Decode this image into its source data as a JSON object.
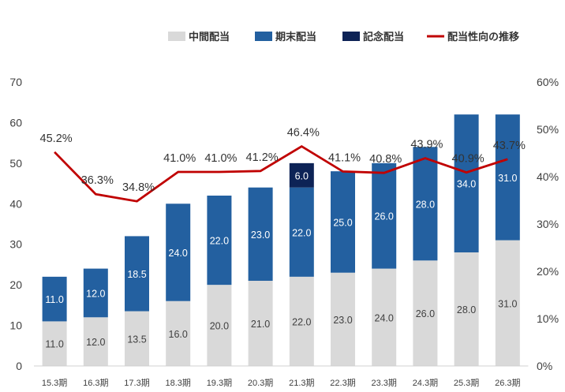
{
  "chart_data": {
    "type": "bar",
    "stacked": true,
    "categories": [
      "15.3期",
      "16.3期",
      "17.3期",
      "18.3期",
      "19.3期",
      "20.3期",
      "21.3期",
      "22.3期",
      "23.3期",
      "24.3期",
      "25.3期",
      "26.3期"
    ],
    "series": [
      {
        "name": "中間配当",
        "color": "#d9d9d9",
        "label_color": "#404040",
        "values": [
          11.0,
          12.0,
          13.5,
          16.0,
          20.0,
          21.0,
          22.0,
          23.0,
          24.0,
          26.0,
          28.0,
          31.0
        ],
        "labels": [
          "11.0",
          "12.0",
          "13.5",
          "16.0",
          "20.0",
          "21.0",
          "22.0",
          "23.0",
          "24.0",
          "26.0",
          "28.0",
          "31.0"
        ]
      },
      {
        "name": "期末配当",
        "color": "#2360a0",
        "label_color": "#ffffff",
        "values": [
          11.0,
          12.0,
          18.5,
          24.0,
          22.0,
          23.0,
          22.0,
          25.0,
          26.0,
          28.0,
          34.0,
          31.0
        ],
        "labels": [
          "11.0",
          "12.0",
          "18.5",
          "24.0",
          "22.0",
          "23.0",
          "22.0",
          "25.0",
          "26.0",
          "28.0",
          "34.0",
          "31.0"
        ]
      },
      {
        "name": "記念配当",
        "color": "#0d2356",
        "label_color": "#ffffff",
        "values": [
          null,
          null,
          null,
          null,
          null,
          null,
          6.0,
          null,
          null,
          null,
          null,
          null
        ],
        "labels": [
          null,
          null,
          null,
          null,
          null,
          null,
          "6.0",
          null,
          null,
          null,
          null,
          null
        ]
      }
    ],
    "line": {
      "name": "配当性向の推移",
      "color": "#c00000",
      "values": [
        45.2,
        36.3,
        34.8,
        41.0,
        41.0,
        41.2,
        46.4,
        41.1,
        40.8,
        43.9,
        40.9,
        43.7
      ],
      "labels": [
        "45.2%",
        "36.3%",
        "34.8%",
        "41.0%",
        "41.0%",
        "41.2%",
        "46.4%",
        "41.1%",
        "40.8%",
        "43.9%",
        "40.9%",
        "43.7%"
      ]
    },
    "y_left": {
      "min": 0,
      "max": 70,
      "ticks": [
        "0",
        "10",
        "20",
        "30",
        "40",
        "50",
        "60",
        "70"
      ]
    },
    "y_right": {
      "min": 0,
      "max": 60,
      "ticks": [
        "0%",
        "10%",
        "20%",
        "30%",
        "40%",
        "50%",
        "60%"
      ]
    },
    "legend": [
      "中間配当",
      "期末配当",
      "記念配当",
      "配当性向の推移"
    ],
    "legend_position": "top"
  }
}
